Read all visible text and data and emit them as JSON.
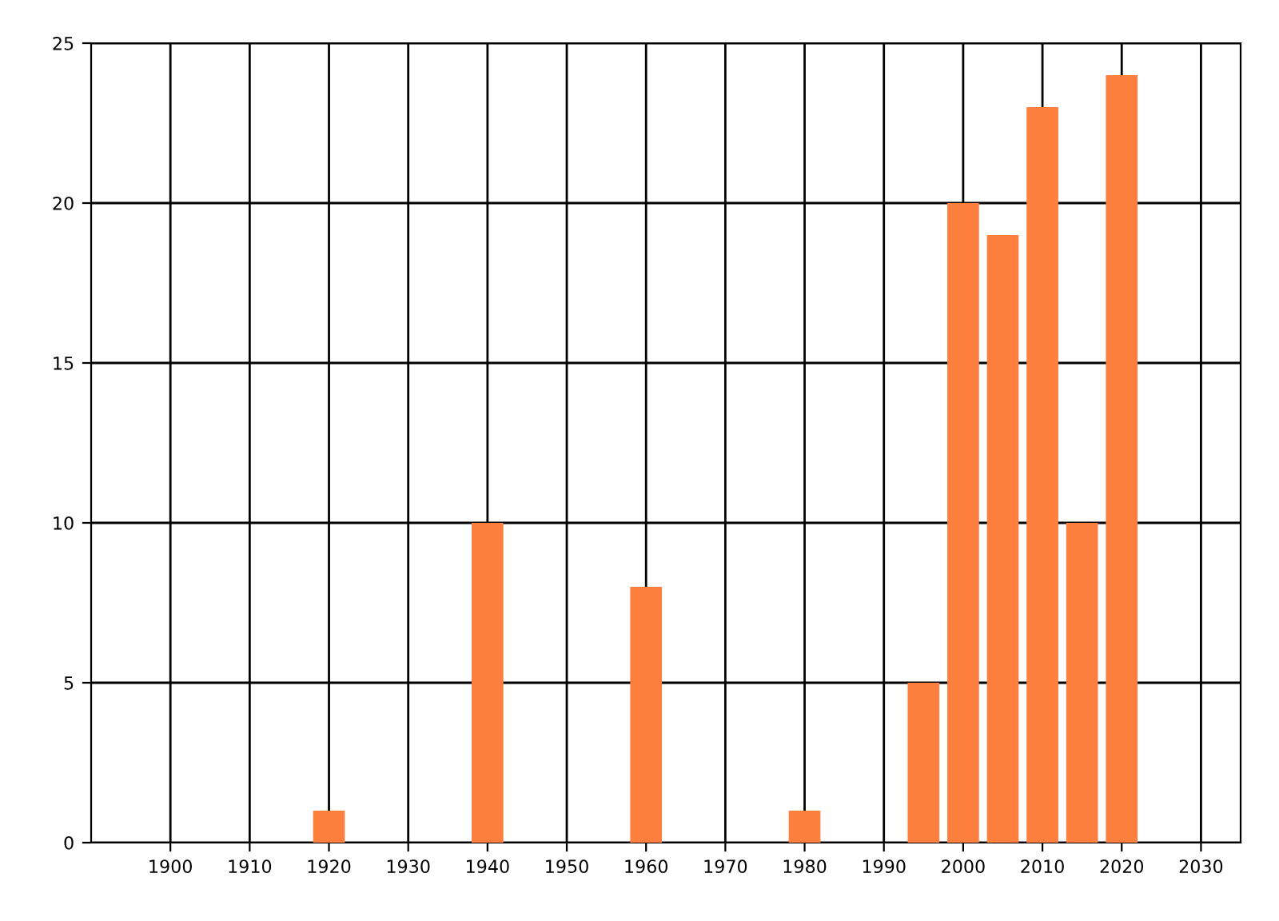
{
  "chart_data": {
    "type": "bar",
    "x": [
      1920,
      1940,
      1960,
      1980,
      1995,
      2000,
      2005,
      2010,
      2015,
      2020
    ],
    "values": [
      1,
      10,
      8,
      1,
      5,
      20,
      19,
      23,
      10,
      24
    ],
    "color": "#ff7f3f",
    "xlim": [
      1890,
      2035
    ],
    "xticks": [
      1900,
      1910,
      1920,
      1930,
      1940,
      1950,
      1960,
      1970,
      1980,
      1990,
      2000,
      2010,
      2020,
      2030
    ],
    "ylim": [
      0,
      25
    ],
    "yticks": [
      0,
      5,
      10,
      15,
      20,
      25
    ],
    "grid": true
  }
}
